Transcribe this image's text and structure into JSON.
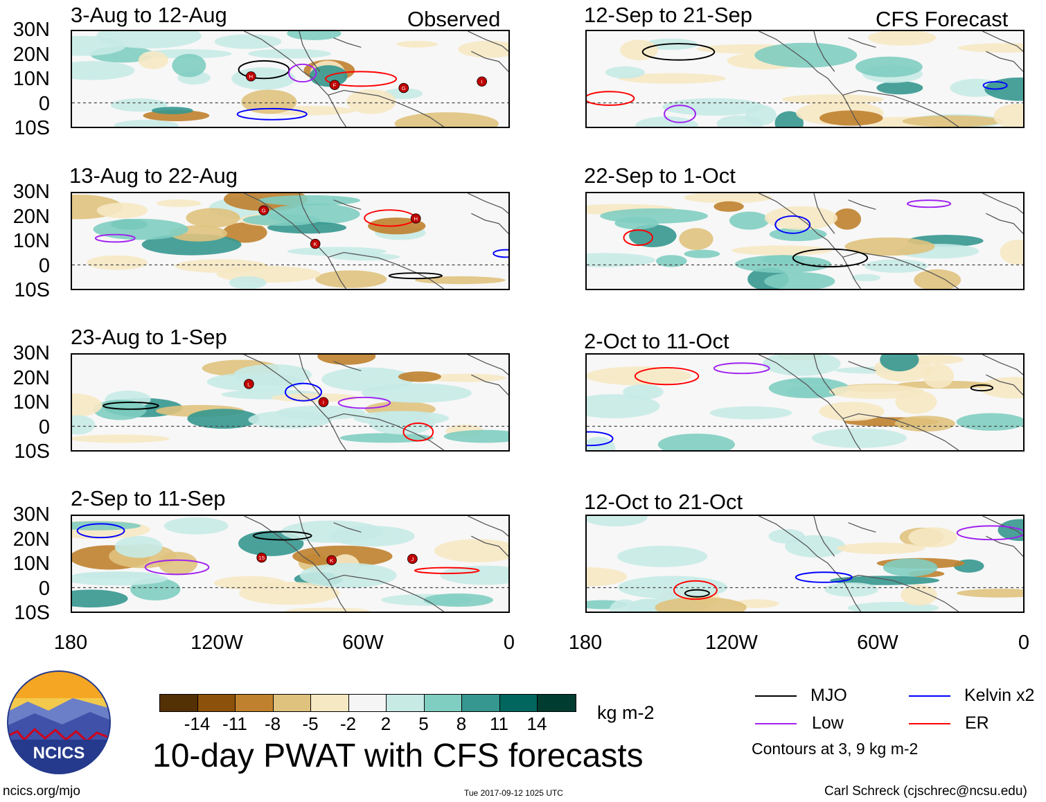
{
  "panels_observed": [
    {
      "title": "3-Aug to 12-Aug",
      "tag": "Observed"
    },
    {
      "title": "13-Aug to 22-Aug",
      "tag": ""
    },
    {
      "title": "23-Aug to 1-Sep",
      "tag": ""
    },
    {
      "title": "2-Sep to 11-Sep",
      "tag": ""
    }
  ],
  "panels_forecast": [
    {
      "title": "12-Sep to 21-Sep",
      "tag": "CFS Forecast"
    },
    {
      "title": "22-Sep to 1-Oct",
      "tag": ""
    },
    {
      "title": "2-Oct to 11-Oct",
      "tag": ""
    },
    {
      "title": "12-Oct to 21-Oct",
      "tag": ""
    }
  ],
  "lat_labels": [
    "30N",
    "20N",
    "10N",
    "0",
    "10S"
  ],
  "lon_labels": [
    "180",
    "120W",
    "60W",
    "0"
  ],
  "colorbar": {
    "colors": [
      "#543005",
      "#8c510a",
      "#bf812d",
      "#dfc27d",
      "#f6e8c3",
      "#f5f5f5",
      "#c7eae5",
      "#80cdc1",
      "#35978f",
      "#01665e",
      "#003c30"
    ],
    "labels": [
      "-14",
      "-11",
      "-8",
      "-5",
      "-2",
      "2",
      "5",
      "8",
      "11",
      "14"
    ],
    "units": "kg m-2"
  },
  "title": "10-day PWAT with CFS forecasts",
  "legend": {
    "items": [
      {
        "label": "MJO",
        "color": "#000000"
      },
      {
        "label": "Kelvin x2",
        "color": "#0000ff"
      },
      {
        "label": "Low",
        "color": "#a020f0"
      },
      {
        "label": "ER",
        "color": "#ff0000"
      }
    ],
    "note": "Contours at 3, 9 kg m-2"
  },
  "footer": {
    "left": "ncics.org/mjo",
    "center": "Tue 2017-09-12 1025 UTC",
    "right": "Carl Schreck (cjschrec@ncsu.edu)"
  },
  "logo_text": "NCICS",
  "storm_labels_observed": [
    [
      "H",
      "F",
      "G",
      "I"
    ],
    [
      "G",
      "K",
      "H"
    ],
    [
      "L",
      "I"
    ],
    [
      "15",
      "K",
      "J"
    ]
  ]
}
